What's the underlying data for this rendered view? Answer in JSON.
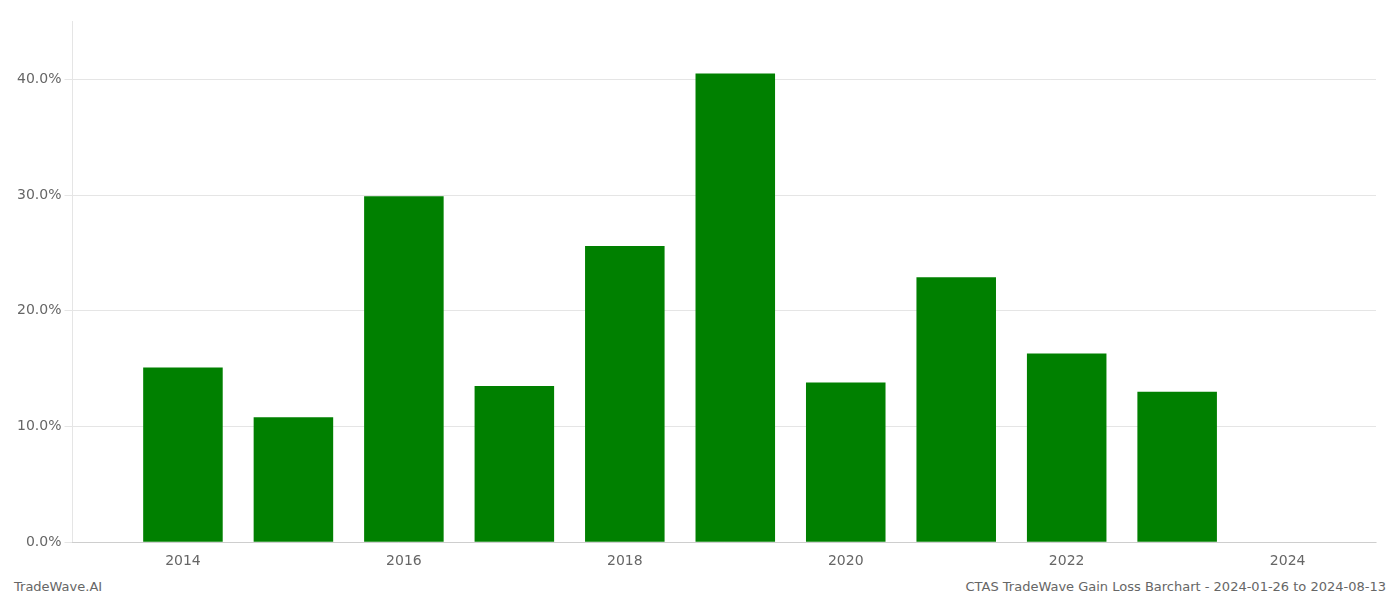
{
  "chart_data": {
    "type": "bar",
    "x": [
      2014,
      2015,
      2016,
      2017,
      2018,
      2019,
      2020,
      2021,
      2022,
      2023
    ],
    "values": [
      0.151,
      0.108,
      0.299,
      0.135,
      0.256,
      0.405,
      0.138,
      0.229,
      0.163,
      0.13
    ],
    "color": "#008000",
    "xlim": [
      2013.0,
      2024.8
    ],
    "xticks": [
      2014,
      2016,
      2018,
      2020,
      2022,
      2024
    ],
    "ylim": [
      0,
      0.45
    ],
    "yticks": [
      {
        "value": 0.0,
        "label": "0.0%"
      },
      {
        "value": 0.1,
        "label": "10.0%"
      },
      {
        "value": 0.2,
        "label": "20.0%"
      },
      {
        "value": 0.3,
        "label": "30.0%"
      },
      {
        "value": 0.4,
        "label": "40.0%"
      }
    ],
    "grid": "y",
    "annotations": [
      "TradeWave.AI",
      "CTAS TradeWave Gain Loss Barchart - 2024-01-26 to 2024-08-13"
    ]
  }
}
